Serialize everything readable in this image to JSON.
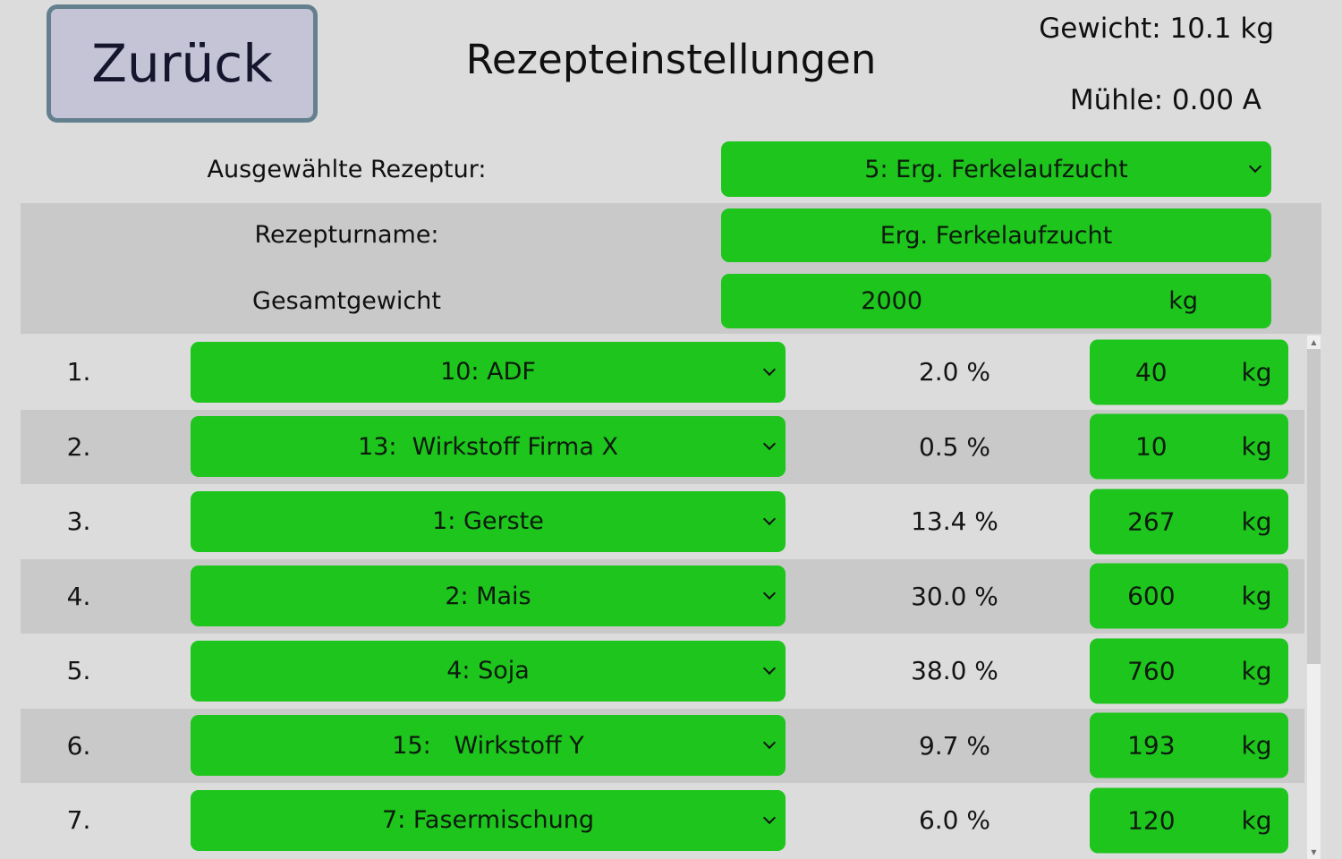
{
  "header": {
    "back_label": "Zurück",
    "title": "Rezepteinstellungen",
    "weight_text": "Gewicht: 10.1 kg",
    "mill_text": "Mühle: 0.00 A"
  },
  "recipe_form": {
    "selected_recipe_label": "Ausgewählte Rezeptur:",
    "selected_recipe_value": "5: Erg. Ferkelaufzucht",
    "recipe_name_label": "Rezepturname:",
    "recipe_name_value": "Erg. Ferkelaufzucht",
    "total_weight_label": "Gesamtgewicht",
    "total_weight_value": "2000",
    "total_weight_unit": "kg"
  },
  "ingredients": {
    "rows": [
      {
        "index": "1.",
        "component": "10: ADF",
        "percent": "2.0 %",
        "amount": "40",
        "unit": "kg"
      },
      {
        "index": "2.",
        "component": "13:  Wirkstoff Firma X",
        "percent": "0.5 %",
        "amount": "10",
        "unit": "kg"
      },
      {
        "index": "3.",
        "component": "1: Gerste",
        "percent": "13.4 %",
        "amount": "267",
        "unit": "kg"
      },
      {
        "index": "4.",
        "component": "2: Mais",
        "percent": "30.0 %",
        "amount": "600",
        "unit": "kg"
      },
      {
        "index": "5.",
        "component": "4: Soja",
        "percent": "38.0 %",
        "amount": "760",
        "unit": "kg"
      },
      {
        "index": "6.",
        "component": "15:   Wirkstoff Y",
        "percent": "9.7 %",
        "amount": "193",
        "unit": "kg"
      },
      {
        "index": "7.",
        "component": "7: Fasermischung",
        "percent": "6.0 %",
        "amount": "120",
        "unit": "kg"
      }
    ]
  },
  "scrollbar": {
    "up_icon": "▲",
    "down_icon": "▼"
  },
  "colors": {
    "page_background": "#dcdcdc",
    "row_band": "#c9c9c9",
    "field_green": "#1dc51d",
    "back_button_fill": "#c4c4d6",
    "back_button_border": "#64808e"
  }
}
